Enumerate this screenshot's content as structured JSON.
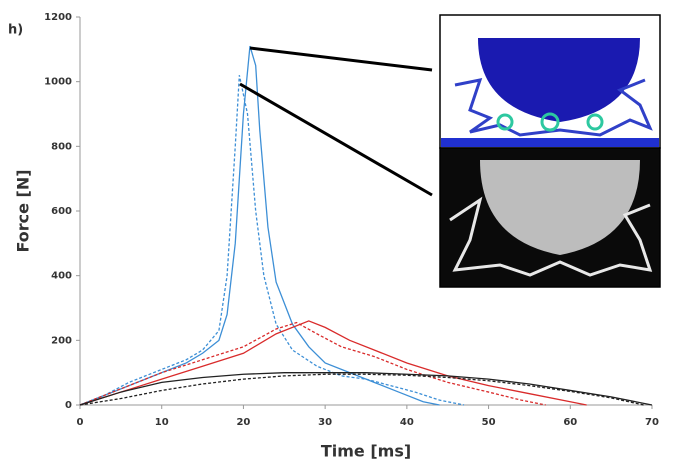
{
  "chart_data": {
    "type": "line",
    "panel_label": "h)",
    "xlabel": "Time [ms]",
    "ylabel": "Force [N]",
    "xlim": [
      0,
      70
    ],
    "xticks": [
      0,
      10,
      20,
      30,
      40,
      50,
      60,
      70
    ],
    "ylim": [
      0,
      1200
    ],
    "yticks": [
      0,
      200,
      400,
      600,
      800,
      1000,
      1200
    ],
    "series": [
      {
        "color": "#3d8fd6",
        "dash": false,
        "x": [
          0,
          2,
          5,
          8,
          10,
          13,
          15,
          17,
          18,
          19,
          20,
          20.8,
          21.5,
          22,
          23,
          24,
          26,
          28,
          30,
          33,
          36,
          39,
          42,
          44
        ],
        "values": [
          0,
          20,
          50,
          80,
          100,
          130,
          160,
          200,
          280,
          500,
          900,
          1110,
          1050,
          850,
          550,
          380,
          250,
          180,
          130,
          100,
          70,
          40,
          10,
          0
        ]
      },
      {
        "color": "#3d8fd6",
        "dash": true,
        "x": [
          0,
          3,
          6,
          10,
          13,
          15,
          17,
          18,
          19,
          19.5,
          20.5,
          21.5,
          22.5,
          24,
          26,
          29,
          32,
          35,
          38,
          41,
          44,
          47
        ],
        "values": [
          0,
          30,
          70,
          110,
          140,
          170,
          230,
          400,
          800,
          1020,
          900,
          600,
          400,
          250,
          170,
          120,
          90,
          80,
          60,
          40,
          15,
          0
        ]
      },
      {
        "color": "#d92b2b",
        "dash": false,
        "x": [
          0,
          5,
          10,
          15,
          20,
          24,
          28,
          30,
          33,
          36,
          40,
          45,
          50,
          55,
          60,
          62
        ],
        "values": [
          0,
          40,
          80,
          120,
          160,
          220,
          260,
          240,
          200,
          170,
          130,
          90,
          60,
          35,
          10,
          0
        ]
      },
      {
        "color": "#d92b2b",
        "dash": true,
        "x": [
          0,
          5,
          10,
          15,
          20,
          24,
          26.5,
          29,
          32,
          36,
          40,
          45,
          50,
          54,
          57
        ],
        "values": [
          0,
          50,
          100,
          140,
          180,
          235,
          255,
          220,
          180,
          150,
          110,
          70,
          40,
          15,
          0
        ]
      },
      {
        "color": "#222222",
        "dash": false,
        "x": [
          0,
          5,
          10,
          15,
          20,
          25,
          30,
          35,
          40,
          45,
          50,
          55,
          60,
          65,
          70
        ],
        "values": [
          0,
          40,
          70,
          85,
          95,
          100,
          100,
          100,
          95,
          90,
          80,
          65,
          45,
          25,
          0
        ]
      },
      {
        "color": "#222222",
        "dash": true,
        "x": [
          0,
          5,
          10,
          15,
          20,
          25,
          30,
          35,
          40,
          45,
          50,
          55,
          60,
          65,
          69
        ],
        "values": [
          0,
          20,
          45,
          65,
          80,
          90,
          95,
          95,
          92,
          85,
          75,
          60,
          42,
          22,
          0
        ]
      }
    ]
  }
}
